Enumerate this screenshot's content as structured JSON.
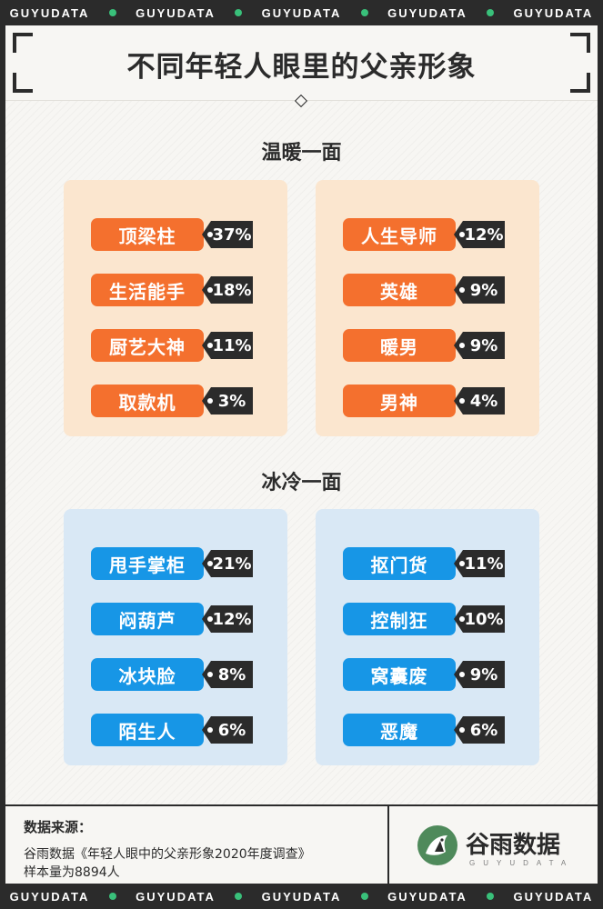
{
  "strip": {
    "items": [
      "GUYUDATA",
      "GUYUDATA",
      "GUYUDATA",
      "GUYUDATA",
      "GUYUDATA"
    ],
    "dot_color": "#39c07a"
  },
  "title": "不同年轻人眼里的父亲形象",
  "chart_data": {
    "type": "table",
    "sections": [
      {
        "title": "温暖一面",
        "theme_color": "#f4702e",
        "columns": [
          [
            {
              "label": "顶梁柱",
              "value": "37%"
            },
            {
              "label": "生活能手",
              "value": "18%"
            },
            {
              "label": "厨艺大神",
              "value": "11%"
            },
            {
              "label": "取款机",
              "value": "3%"
            }
          ],
          [
            {
              "label": "人生导师",
              "value": "12%"
            },
            {
              "label": "英雄",
              "value": "9%"
            },
            {
              "label": "暖男",
              "value": "9%"
            },
            {
              "label": "男神",
              "value": "4%"
            }
          ]
        ]
      },
      {
        "title": "冰冷一面",
        "theme_color": "#1796e6",
        "columns": [
          [
            {
              "label": "甩手掌柜",
              "value": "21%"
            },
            {
              "label": "闷葫芦",
              "value": "12%"
            },
            {
              "label": "冰块脸",
              "value": "8%"
            },
            {
              "label": "陌生人",
              "value": "6%"
            }
          ],
          [
            {
              "label": "抠门货",
              "value": "11%"
            },
            {
              "label": "控制狂",
              "value": "10%"
            },
            {
              "label": "窝囊废",
              "value": "9%"
            },
            {
              "label": "恶魔",
              "value": "6%"
            }
          ]
        ]
      }
    ]
  },
  "footer": {
    "source_label": "数据来源：",
    "source_line1": "谷雨数据《年轻人眼中的父亲形象2020年度调查》",
    "source_line2": "样本量为8894人",
    "logo_text": "谷雨数据",
    "logo_sub": "GUYUDATA",
    "logo_icon": "guyu-bird-icon"
  }
}
